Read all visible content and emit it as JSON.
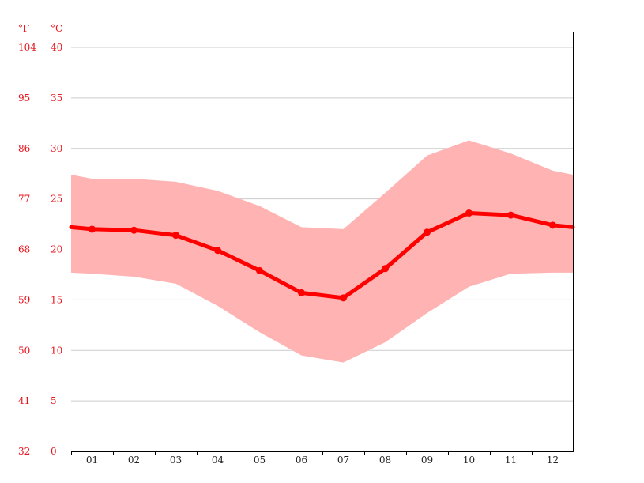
{
  "chart_data": {
    "type": "line",
    "title": "",
    "xlabel": "",
    "ylabel": "",
    "unit_fahrenheit": "°F",
    "unit_celsius": "°C",
    "categories": [
      "01",
      "02",
      "03",
      "04",
      "05",
      "06",
      "07",
      "08",
      "09",
      "10",
      "11",
      "12"
    ],
    "y_ticks_celsius": [
      "0",
      "5",
      "10",
      "15",
      "20",
      "25",
      "30",
      "35",
      "40"
    ],
    "y_ticks_fahrenheit": [
      "32",
      "41",
      "50",
      "59",
      "68",
      "77",
      "86",
      "95",
      "104"
    ],
    "ylim": [
      0,
      40
    ],
    "grid": true,
    "series": [
      {
        "role": "mean",
        "values": [
          22.0,
          21.9,
          21.4,
          19.9,
          17.9,
          15.7,
          15.2,
          18.1,
          21.7,
          23.6,
          23.4,
          22.4
        ],
        "color": "#ff0000"
      },
      {
        "role": "max",
        "values": [
          27.0,
          27.0,
          26.7,
          25.8,
          24.3,
          22.2,
          22.0,
          25.6,
          29.3,
          30.8,
          29.5,
          27.8
        ],
        "color": "#ffb3b3"
      },
      {
        "role": "min",
        "values": [
          17.6,
          17.3,
          16.6,
          14.4,
          11.8,
          9.5,
          8.8,
          10.8,
          13.7,
          16.3,
          17.6,
          17.7
        ],
        "color": "#ffb3b3"
      }
    ],
    "edge_values": {
      "mean": [
        22.2,
        22.2
      ],
      "max": [
        27.4,
        27.4
      ],
      "min": [
        17.7,
        17.7
      ]
    }
  }
}
